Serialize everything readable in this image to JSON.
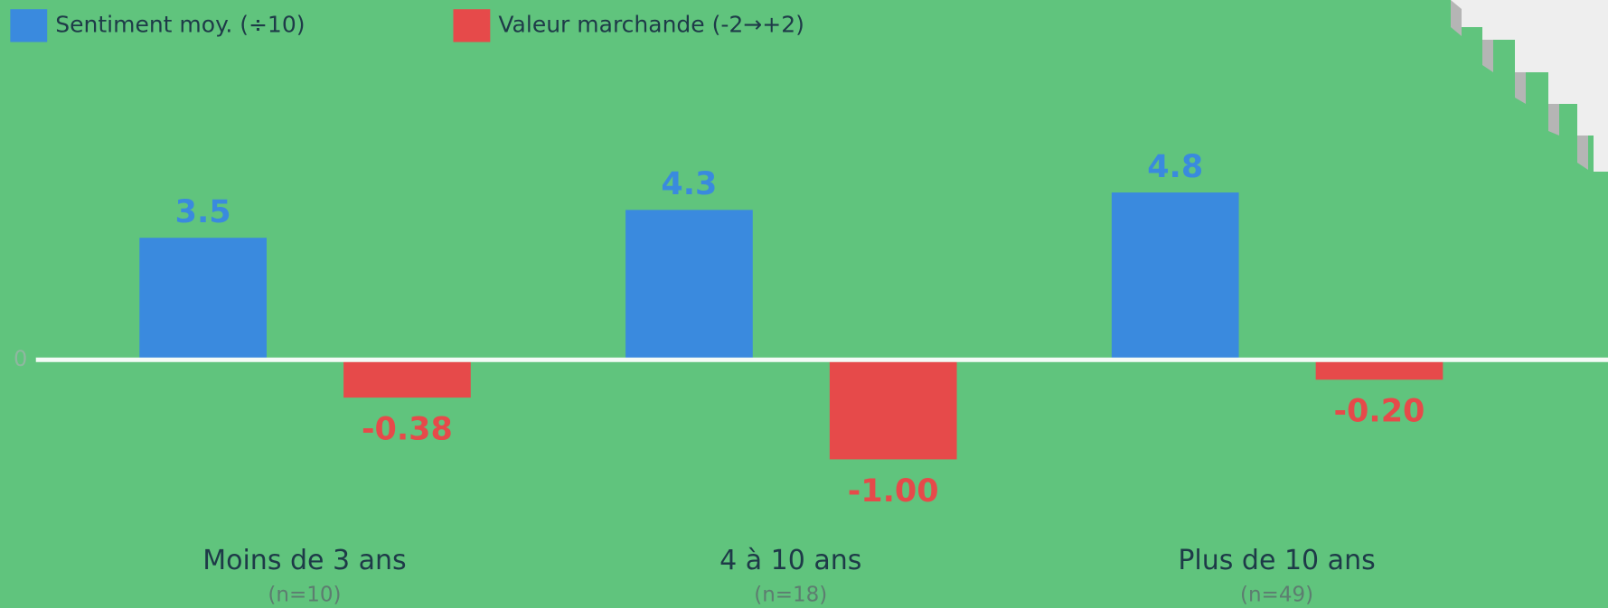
{
  "chart_data": {
    "type": "bar",
    "categories": [
      "Moins de 3 ans",
      "4 à 10 ans",
      "Plus de 10 ans"
    ],
    "category_notes": [
      "(n=10)",
      "(n=18)",
      "(n=49)"
    ],
    "series": [
      {
        "name": "Sentiment moy. (÷10)",
        "color": "#3a8ade",
        "values": [
          3.5,
          4.3,
          4.8
        ]
      },
      {
        "name": "Valeur marchande (-2→+2)",
        "color": "#e64a4a",
        "axis": "y2",
        "values": [
          -0.38,
          -1,
          -0.2
        ],
        "value_labels": [
          "-0.38",
          "-1.00",
          "-0.20"
        ]
      }
    ],
    "ylim": [
      -5,
      10
    ],
    "yticks": [
      0
    ],
    "y2lim": [
      -1.75,
      3.5
    ],
    "y2ticks": [],
    "legend": "top-left"
  }
}
